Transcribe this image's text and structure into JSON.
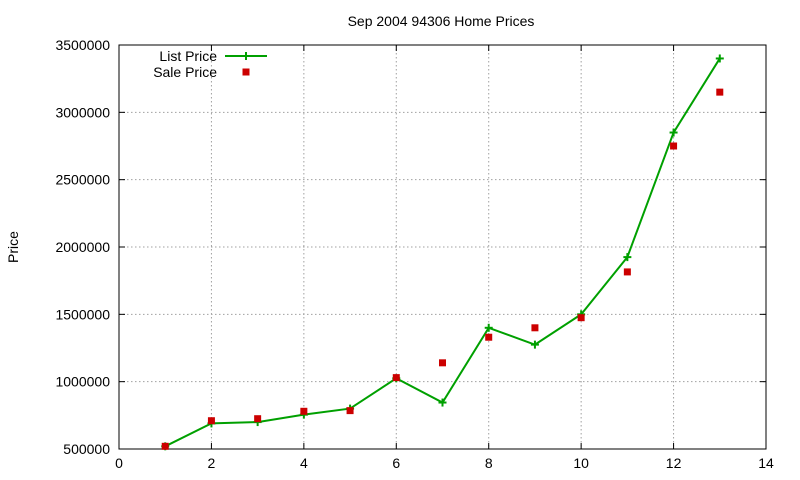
{
  "chart_data": {
    "type": "line",
    "title": "Sep 2004 94306 Home Prices",
    "xlabel": "",
    "ylabel": "Price",
    "xlim": [
      0,
      14
    ],
    "ylim": [
      500000,
      3500000
    ],
    "x_ticks": [
      0,
      2,
      4,
      6,
      8,
      10,
      12,
      14
    ],
    "y_ticks": [
      500000,
      1000000,
      1500000,
      2000000,
      2500000,
      3000000,
      3500000
    ],
    "x_tick_labels": [
      "0",
      "2",
      "4",
      "6",
      "8",
      "10",
      "12",
      "14"
    ],
    "y_tick_labels": [
      "500000",
      "1000000",
      "1500000",
      "2000000",
      "2500000",
      "3000000",
      "3500000"
    ],
    "grid": true,
    "legend_position": "top-left",
    "series": [
      {
        "name": "List Price",
        "style": "linespoints",
        "marker": "plus",
        "color": "#00a000",
        "x": [
          1,
          2,
          3,
          4,
          5,
          6,
          7,
          8,
          9,
          10,
          11,
          12,
          13
        ],
        "values": [
          520000,
          690000,
          700000,
          755000,
          800000,
          1025000,
          845000,
          1400000,
          1275000,
          1500000,
          1925000,
          2850000,
          3400000
        ]
      },
      {
        "name": "Sale Price",
        "style": "points",
        "marker": "square",
        "color": "#cc0000",
        "x": [
          1,
          2,
          3,
          4,
          5,
          6,
          7,
          8,
          9,
          10,
          11,
          12,
          13
        ],
        "values": [
          520000,
          710000,
          725000,
          780000,
          785000,
          1030000,
          1140000,
          1330000,
          1400000,
          1475000,
          1815000,
          2750000,
          3150000
        ]
      }
    ]
  }
}
